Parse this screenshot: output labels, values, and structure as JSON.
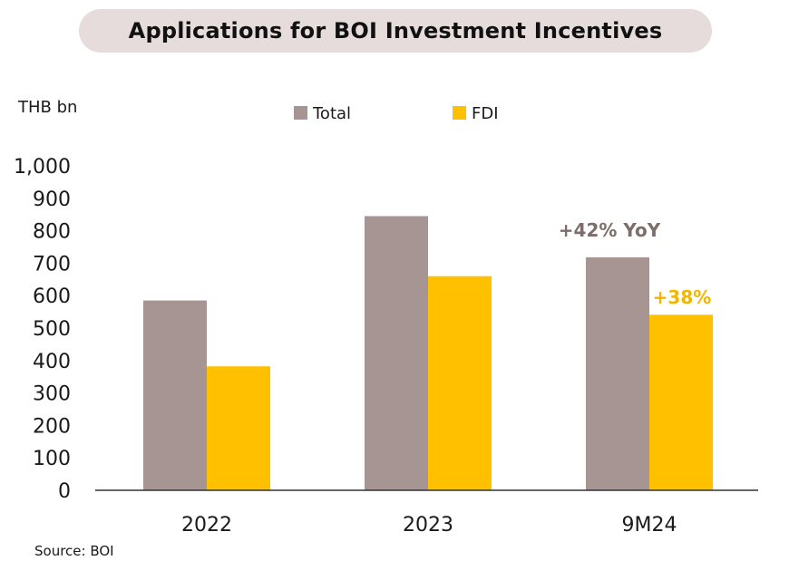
{
  "title": "Applications for BOI Investment Incentives",
  "unit_label": "THB bn",
  "source": "Source: BOI",
  "colors": {
    "total": "#a69593",
    "fdi": "#ffc000",
    "axis": "#333333",
    "annotation_total": "#7d6e6c",
    "annotation_fdi": "#f2b600"
  },
  "chart_data": {
    "type": "bar",
    "categories": [
      "2022",
      "2023",
      "9M24"
    ],
    "series": [
      {
        "name": "Total",
        "values": [
          585,
          845,
          718
        ]
      },
      {
        "name": "FDI",
        "values": [
          382,
          660,
          541
        ]
      }
    ],
    "ylim": [
      0,
      1000
    ],
    "yticks": [
      0,
      100,
      200,
      300,
      400,
      500,
      600,
      700,
      800,
      900,
      1000
    ],
    "ytick_labels": [
      "0",
      "100",
      "200",
      "300",
      "400",
      "500",
      "600",
      "700",
      "800",
      "900",
      "1,000"
    ],
    "grid": false,
    "legend": "top",
    "annotations": [
      {
        "text": "+42% YoY",
        "series": "Total",
        "category": "9M24"
      },
      {
        "text": "+38%",
        "series": "FDI",
        "category": "9M24"
      }
    ]
  }
}
